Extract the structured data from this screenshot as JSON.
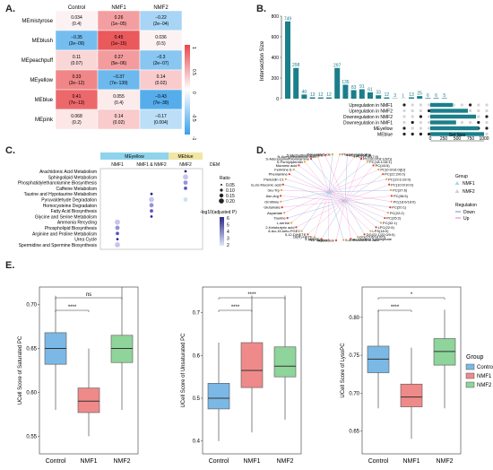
{
  "panels": {
    "A": {
      "label": "A.",
      "columns": [
        "Control",
        "NMF1",
        "NMF2"
      ],
      "rows": [
        {
          "name": "MEmistyrose",
          "cells": [
            [
              "0.034",
              "(0.4)"
            ],
            [
              "0.26",
              "(1e−05)"
            ],
            [
              "−0.22",
              "(2e−04)"
            ]
          ],
          "values": [
            0.034,
            0.26,
            -0.22
          ]
        },
        {
          "name": "MEblush",
          "cells": [
            [
              "−0.35",
              "(2e−09)"
            ],
            [
              "0.45",
              "(1e−15)"
            ],
            [
              "0.036",
              "(0.5)"
            ]
          ],
          "values": [
            -0.35,
            0.45,
            0.036
          ]
        },
        {
          "name": "MEpeachpuff",
          "cells": [
            [
              "0.11",
              "(0.07)"
            ],
            [
              "0.27",
              "(5e−06)"
            ],
            [
              "−0.3",
              "(2e−07)"
            ]
          ],
          "values": [
            0.11,
            0.27,
            -0.3
          ]
        },
        {
          "name": "MEyellow",
          "cells": [
            [
              "0.33",
              "(2e−12)"
            ],
            [
              "−0.37",
              "(7e−139)"
            ],
            [
              "0.14",
              "(0.02)"
            ]
          ],
          "values": [
            0.33,
            -0.37,
            0.14
          ]
        },
        {
          "name": "MEblue",
          "cells": [
            [
              "0.41",
              "(7e−13)"
            ],
            [
              "0.055",
              "(0.4)"
            ],
            [
              "−0.43",
              "(7e−39)"
            ]
          ],
          "values": [
            0.41,
            0.055,
            -0.43
          ]
        },
        {
          "name": "MEpink",
          "cells": [
            [
              "0.068",
              "(0.2)"
            ],
            [
              "0.14",
              "(0.02)"
            ],
            [
              "−0.17",
              "(0.004)"
            ]
          ],
          "values": [
            0.068,
            0.14,
            -0.17
          ]
        }
      ],
      "colorbar_ticks": [
        "1",
        "0.5",
        "0",
        "-0.5",
        "-1"
      ],
      "colors": {
        "pos": "#e8474a",
        "neg": "#3aa0e8"
      }
    },
    "B": {
      "label": "B.",
      "ylabel": "Intersection Size",
      "xlabel": "Set Size",
      "yticks": [
        "800",
        "600",
        "400",
        "200",
        "0"
      ],
      "bar_values": [
        749,
        298,
        40,
        13,
        12,
        12,
        297,
        135,
        83,
        91,
        61,
        33,
        12,
        3,
        1,
        13,
        25,
        6,
        6,
        5
      ],
      "sets": [
        "Upregulation in NMF1",
        "Upregulation in NMF2",
        "Downregulation in NMF2",
        "Downregulation in NMF1",
        "MEyellow",
        "MEblue"
      ],
      "set_sizes": [
        420,
        700,
        850,
        480,
        900,
        1000
      ],
      "set_size_ticks": [
        "1000",
        "750",
        "500",
        "250",
        "0"
      ],
      "color": "#1a7f8a"
    },
    "C": {
      "label": "C.",
      "groups": [
        "MEyellow",
        "MEblue"
      ],
      "columns": [
        "NMF1",
        "NMF1 & NMF2",
        "NMF2"
      ],
      "dem": "DEM",
      "pathways": [
        "Arachidonic Acid Metabolism",
        "Sphingolipid Metabolism",
        "Phosphatidylethanolamine Biosynthesis",
        "Caffeine Metabolism",
        "Taurine and Hypotaurine Metabolism",
        "Pyruvaldehyde Degradation",
        "Homocysteine Degradation",
        "Fatty Acid Biosynthesis",
        "Glycine and Serine Metabolism",
        "Ammonia Recycling",
        "Phospholipid Biosynthesis",
        "Arginine and Proline Metabolism",
        "Urea Cycle",
        "Spermidine and Spermine Biosynthesis"
      ],
      "ratio_title": "Ratio",
      "ratio_ticks": [
        "0.05",
        "0.10",
        "0.15",
        "0.20"
      ],
      "padj_title": "-log10(adjusted P)",
      "padj_ticks": [
        "6",
        "5",
        "4",
        "3",
        "2"
      ]
    },
    "D": {
      "label": "D.",
      "metabolites_left": [
        "Pyruvaldehyde",
        "5'-Methylthioadenosine",
        "N-Acetylneuraminic acid",
        "S-Adenosylmethioninamine",
        "S-Formylpteridin",
        "Muramic acid",
        "Ferimine E",
        "Pheniamine",
        "Piericidin C1",
        "cis,cis-Muconic acid",
        "Glu-Trp",
        "Asn-Arg",
        "Ornithine",
        "Glutamate",
        "Aspartate",
        "Taurine",
        "L-serine",
        "2-Ketobutyric acid",
        "8-iso-15-keto-PGE2",
        "5,12-DiHETE",
        "16(R)-HETE",
        "5-HpETE",
        "PGF1alpha"
      ],
      "metabolites_right": [
        "Nordotoxin",
        "5-Aminolevulinic acid",
        "sn-Glycerol 3-phosphate",
        "DG(15:0/18:0/0)",
        "DG(22:1/22:0/0:0)",
        "LPS(18:0)",
        "LPC(22:5)",
        "PC(32:1)",
        "PC(35:2)",
        "PC(22:2)",
        "PC(20:1)",
        "PC(18:0/18:0)",
        "PC(36:5)",
        "PC(37:6)",
        "PC(10:0/10:0)",
        "PC(19:1/19:0)",
        "PC(22:2/0:0)",
        "PC(0:0/16:0)[U]",
        "PC(40:5)",
        "PC(18:1/18:1)",
        "PC(16:0/18:1(9Z))",
        "PC(17:0/17:0)",
        "PE(18:0/18:3)",
        "Phosphorylcholine"
      ],
      "legend_group_title": "Group",
      "legend_groups": [
        "NMF1",
        "NMF2"
      ],
      "legend_reg_title": "Regulation",
      "legend_regs": [
        "Down",
        "Up"
      ],
      "colors": {
        "nmf1": "#9fd8ef",
        "nmf2": "#cfcfcf",
        "down": "#6b8cd6",
        "up": "#e879c4"
      }
    },
    "E": {
      "label": "E.",
      "plots": [
        {
          "ylabel": "UCell Score of Saturated PC",
          "yticks": [
            "0.70",
            "0.65",
            "0.60",
            "0.55"
          ],
          "ylim": [
            0.53,
            0.72
          ],
          "sig_top": "ns",
          "sig_bottom": "****",
          "boxes": [
            {
              "group": "Control",
              "min": 0.58,
              "q1": 0.632,
              "median": 0.65,
              "q3": 0.668,
              "max": 0.71
            },
            {
              "group": "NMF1",
              "min": 0.55,
              "q1": 0.577,
              "median": 0.59,
              "q3": 0.605,
              "max": 0.65
            },
            {
              "group": "NMF2",
              "min": 0.58,
              "q1": 0.634,
              "median": 0.65,
              "q3": 0.665,
              "max": 0.72
            }
          ]
        },
        {
          "ylabel": "UCell Score of Unsaturated PC",
          "yticks": [
            "0.7",
            "0.6",
            "0.5",
            "0.4"
          ],
          "ylim": [
            0.37,
            0.76
          ],
          "sig_top": "****",
          "sig_bottom": "****",
          "boxes": [
            {
              "group": "Control",
              "min": 0.4,
              "q1": 0.475,
              "median": 0.5,
              "q3": 0.535,
              "max": 0.63
            },
            {
              "group": "NMF1",
              "min": 0.42,
              "q1": 0.525,
              "median": 0.565,
              "q3": 0.63,
              "max": 0.74
            },
            {
              "group": "NMF2",
              "min": 0.45,
              "q1": 0.55,
              "median": 0.575,
              "q3": 0.62,
              "max": 0.74
            }
          ]
        },
        {
          "ylabel": "UCell Score of LysoPC",
          "yticks": [
            "0.80",
            "0.75",
            "0.70",
            "0.65"
          ],
          "ylim": [
            0.62,
            0.84
          ],
          "sig_top": "*",
          "sig_bottom": "****",
          "boxes": [
            {
              "group": "Control",
              "min": 0.68,
              "q1": 0.727,
              "median": 0.745,
              "q3": 0.762,
              "max": 0.81
            },
            {
              "group": "NMF1",
              "min": 0.64,
              "q1": 0.682,
              "median": 0.695,
              "q3": 0.712,
              "max": 0.76
            },
            {
              "group": "NMF2",
              "min": 0.68,
              "q1": 0.737,
              "median": 0.755,
              "q3": 0.772,
              "max": 0.81
            }
          ]
        }
      ],
      "groups": [
        "Control",
        "NMF1",
        "NMF2"
      ],
      "legend_title": "Group",
      "colors": {
        "Control": "#7bb8e6",
        "NMF1": "#ef8a8a",
        "NMF2": "#8fd49a"
      }
    }
  },
  "chart_data": [
    {
      "type": "heatmap",
      "rows": [
        "MEmistyrose",
        "MEblush",
        "MEpeachpuff",
        "MEyellow",
        "MEblue",
        "MEpink"
      ],
      "columns": [
        "Control",
        "NMF1",
        "NMF2"
      ],
      "values": [
        [
          0.034,
          0.26,
          -0.22
        ],
        [
          -0.35,
          0.45,
          0.036
        ],
        [
          0.11,
          0.27,
          -0.3
        ],
        [
          0.33,
          -0.37,
          0.14
        ],
        [
          0.41,
          0.055,
          -0.43
        ],
        [
          0.068,
          0.14,
          -0.17
        ]
      ]
    },
    {
      "type": "bar",
      "title": "",
      "ylabel": "Intersection Size",
      "values": [
        749,
        298,
        40,
        13,
        12,
        12,
        297,
        135,
        83,
        91,
        61,
        33,
        12,
        3,
        1,
        13,
        25,
        6,
        6,
        5
      ]
    },
    {
      "type": "scatter",
      "title": "",
      "note_groups": [
        "MEyellow",
        "MEblue"
      ]
    },
    {
      "type": "bar",
      "title": "",
      "note": "box plots of UCell scores"
    }
  ]
}
